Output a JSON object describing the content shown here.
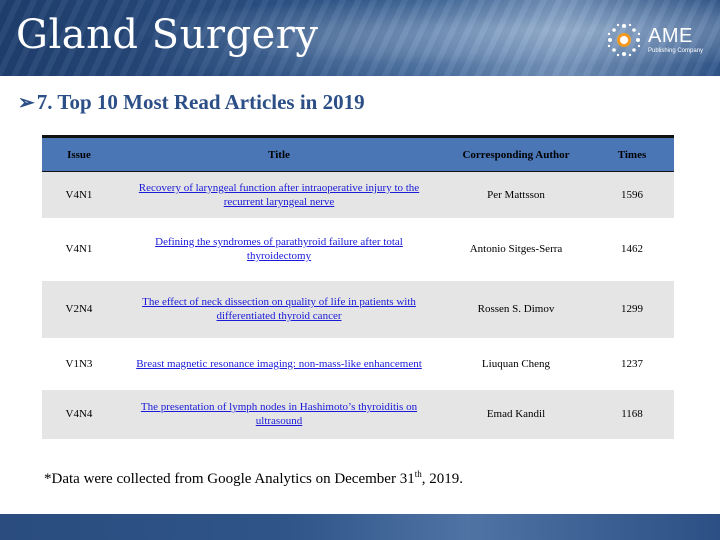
{
  "banner": {
    "title": "Gland Surgery",
    "logo_name": "AME",
    "logo_sub": "Publishing Company"
  },
  "heading": {
    "arrow": "➢",
    "text": "7. Top 10 Most Read Articles in 2019"
  },
  "table": {
    "headers": [
      "Issue",
      "Title",
      "Corresponding Author",
      "Times"
    ],
    "rows": [
      {
        "issue": "V4N1",
        "title": "Recovery of laryngeal function after intraoperative injury to the recurrent laryngeal nerve",
        "author": "Per Mattsson",
        "times": "1596"
      },
      {
        "issue": "V4N1",
        "title": "Defining the syndromes of parathyroid failure after total thyroidectomy",
        "author": "Antonio Sitges-Serra",
        "times": "1462"
      },
      {
        "issue": "V2N4",
        "title": "The effect of neck dissection on quality of life in patients with differentiated thyroid cancer",
        "author": "Rossen S. Dimov",
        "times": "1299"
      },
      {
        "issue": "V1N3",
        "title": "Breast magnetic resonance imaging: non-mass-like enhancement",
        "author": "Liuquan Cheng",
        "times": "1237"
      },
      {
        "issue": "V4N4",
        "title": "The presentation of lymph nodes in Hashimoto’s thyroiditis on ultrasound",
        "author": "Emad Kandil",
        "times": "1168"
      }
    ]
  },
  "note": {
    "prefix": "*Data were collected from Google Analytics on December 31",
    "sup": "th",
    "suffix": ", 2019."
  },
  "colors": {
    "banner": "#2a4f82",
    "heading": "#2b4f86",
    "table_header": "#4a76b6",
    "row_shade": "#e5e5e5",
    "link": "#1a1ad8"
  }
}
